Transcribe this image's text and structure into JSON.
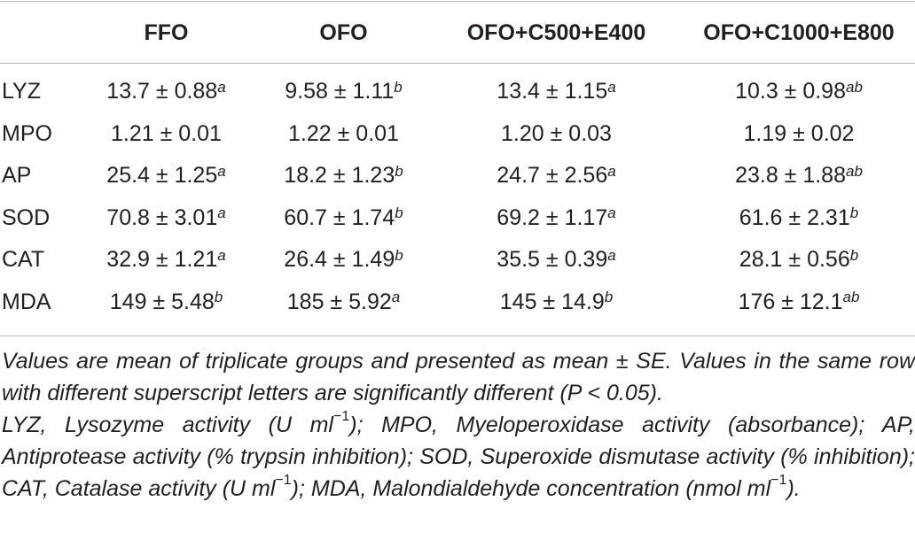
{
  "table": {
    "headers": [
      "",
      "FFO",
      "OFO",
      "OFO+C500+E400",
      "OFO+C1000+E800"
    ],
    "rows": [
      {
        "label": "LYZ",
        "cells": [
          {
            "value": "13.7 ± 0.88",
            "sup": "a"
          },
          {
            "value": "9.58 ± 1.11",
            "sup": "b"
          },
          {
            "value": "13.4 ± 1.15",
            "sup": "a"
          },
          {
            "value": "10.3 ± 0.98",
            "sup": "ab"
          }
        ]
      },
      {
        "label": "MPO",
        "cells": [
          {
            "value": "1.21 ± 0.01",
            "sup": ""
          },
          {
            "value": "1.22 ± 0.01",
            "sup": ""
          },
          {
            "value": "1.20 ± 0.03",
            "sup": ""
          },
          {
            "value": "1.19 ± 0.02",
            "sup": ""
          }
        ]
      },
      {
        "label": "AP",
        "cells": [
          {
            "value": "25.4 ± 1.25",
            "sup": "a"
          },
          {
            "value": "18.2 ± 1.23",
            "sup": "b"
          },
          {
            "value": "24.7 ± 2.56",
            "sup": "a"
          },
          {
            "value": "23.8 ± 1.88",
            "sup": "ab"
          }
        ]
      },
      {
        "label": "SOD",
        "cells": [
          {
            "value": "70.8 ± 3.01",
            "sup": "a"
          },
          {
            "value": "60.7 ± 1.74",
            "sup": "b"
          },
          {
            "value": "69.2 ± 1.17",
            "sup": "a"
          },
          {
            "value": "61.6 ± 2.31",
            "sup": "b"
          }
        ]
      },
      {
        "label": "CAT",
        "cells": [
          {
            "value": "32.9 ± 1.21",
            "sup": "a"
          },
          {
            "value": "26.4 ± 1.49",
            "sup": "b"
          },
          {
            "value": "35.5 ± 0.39",
            "sup": "a"
          },
          {
            "value": "28.1 ± 0.56",
            "sup": "b"
          }
        ]
      },
      {
        "label": "MDA",
        "cells": [
          {
            "value": "149 ± 5.48",
            "sup": "b"
          },
          {
            "value": "185 ± 5.92",
            "sup": "a"
          },
          {
            "value": "145 ± 14.9",
            "sup": "b"
          },
          {
            "value": "176 ± 12.1",
            "sup": "ab"
          }
        ]
      }
    ]
  },
  "footnote": {
    "line1": "Values are mean of triplicate groups and presented as mean ± SE. Values in the same row with different superscript letters are significantly different (P < 0.05).",
    "line2_a": "LYZ, Lysozyme activity (U ml",
    "exp": "−1",
    "line2_b": "); MPO, Myeloperoxidase activity (absorbance); AP, Antiprotease activity (% trypsin inhibition); SOD, Superoxide dismutase activity (% inhibition); CAT, Catalase activity (U ml",
    "line2_c": "); MDA, Malondialdehyde concentration (nmol ml",
    "line2_d": ")."
  }
}
